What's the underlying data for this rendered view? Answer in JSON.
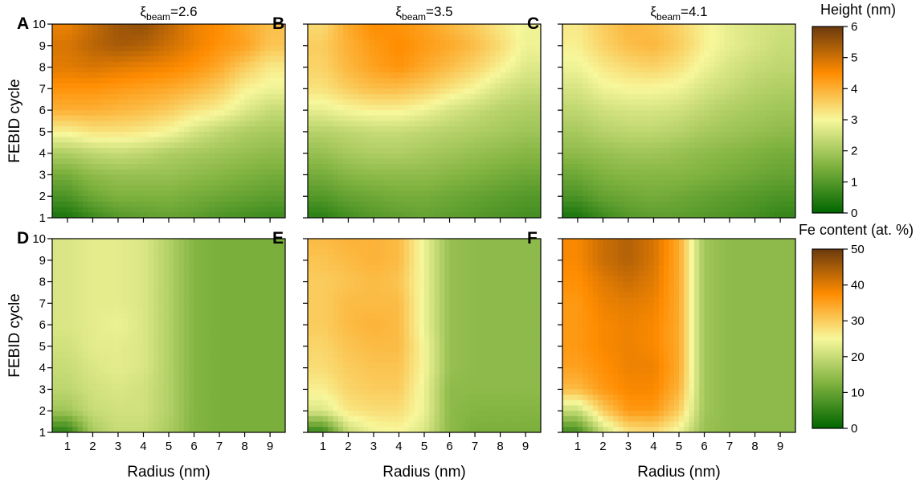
{
  "colors": {
    "colormap": [
      "#006600",
      "#7fb23f",
      "#f7f79b",
      "#ff8c00",
      "#6b3a0e"
    ]
  },
  "chart_data": [
    {
      "type": "heatmap",
      "panel": "A",
      "row": "top",
      "title_prefix": "ξ",
      "title_sub": "beam",
      "title_suffix": "=2.6",
      "xlabel": "",
      "ylabel": "FEBID cycle",
      "xlim": [
        0.4,
        9.6
      ],
      "ylim": [
        1,
        10
      ],
      "zlim": [
        0,
        6
      ],
      "x": [
        1,
        2,
        3,
        4,
        5,
        6,
        7,
        8,
        9
      ],
      "y": [
        1,
        2,
        3,
        4,
        5,
        6,
        7,
        8,
        9,
        10
      ],
      "z": [
        [
          0.3,
          0.7,
          1.0,
          1.1,
          1.2,
          1.1,
          0.9,
          0.8,
          0.7
        ],
        [
          0.9,
          1.3,
          1.5,
          1.5,
          1.5,
          1.4,
          1.3,
          1.2,
          1.1
        ],
        [
          1.4,
          1.7,
          1.8,
          1.8,
          1.8,
          1.7,
          1.6,
          1.5,
          1.4
        ],
        [
          2.1,
          2.3,
          2.4,
          2.3,
          2.1,
          2.0,
          1.9,
          1.8,
          1.7
        ],
        [
          3.1,
          3.3,
          3.3,
          3.2,
          3.0,
          2.6,
          2.3,
          2.1,
          2.0
        ],
        [
          4.0,
          4.0,
          3.9,
          3.8,
          3.6,
          3.3,
          3.1,
          2.7,
          2.4
        ],
        [
          4.4,
          4.4,
          4.3,
          4.2,
          4.1,
          3.9,
          3.6,
          3.1,
          2.9
        ],
        [
          4.8,
          4.9,
          4.8,
          4.7,
          4.6,
          4.4,
          4.1,
          3.6,
          3.2
        ],
        [
          4.9,
          5.2,
          5.4,
          5.3,
          5.0,
          4.7,
          4.4,
          4.2,
          3.7
        ],
        [
          4.7,
          5.1,
          5.5,
          5.6,
          5.2,
          4.7,
          4.5,
          4.1,
          3.8
        ]
      ]
    },
    {
      "type": "heatmap",
      "panel": "B",
      "row": "top",
      "title_prefix": "ξ",
      "title_sub": "beam",
      "title_suffix": "=3.5",
      "xlabel": "",
      "ylabel": "",
      "xlim": [
        0.4,
        9.6
      ],
      "ylim": [
        1,
        10
      ],
      "zlim": [
        0,
        6
      ],
      "x": [
        1,
        2,
        3,
        4,
        5,
        6,
        7,
        8,
        9
      ],
      "y": [
        1,
        2,
        3,
        4,
        5,
        6,
        7,
        8,
        9,
        10
      ],
      "z": [
        [
          0.5,
          0.8,
          1.0,
          1.1,
          1.2,
          1.1,
          1.0,
          0.9,
          0.8
        ],
        [
          1.0,
          1.2,
          1.3,
          1.4,
          1.4,
          1.3,
          1.2,
          1.1,
          1.0
        ],
        [
          1.4,
          1.6,
          1.7,
          1.7,
          1.7,
          1.6,
          1.5,
          1.4,
          1.3
        ],
        [
          1.8,
          2.0,
          2.1,
          2.1,
          2.0,
          1.9,
          1.8,
          1.7,
          1.6
        ],
        [
          2.2,
          2.3,
          2.4,
          2.4,
          2.3,
          2.2,
          2.1,
          2.0,
          1.9
        ],
        [
          2.8,
          3.0,
          3.1,
          3.1,
          2.9,
          2.6,
          2.4,
          2.2,
          2.1
        ],
        [
          3.3,
          3.6,
          3.8,
          3.8,
          3.6,
          3.3,
          3.0,
          2.6,
          2.4
        ],
        [
          3.5,
          3.9,
          4.2,
          4.4,
          4.1,
          3.8,
          3.5,
          3.1,
          2.7
        ],
        [
          3.6,
          4.0,
          4.3,
          4.5,
          4.3,
          4.1,
          3.8,
          3.4,
          2.9
        ],
        [
          3.4,
          4.1,
          4.5,
          4.4,
          4.2,
          3.9,
          3.6,
          3.2,
          2.9
        ]
      ]
    },
    {
      "type": "heatmap",
      "panel": "C",
      "row": "top",
      "title_prefix": "ξ",
      "title_sub": "beam",
      "title_suffix": "=4.1",
      "xlabel": "",
      "ylabel": "",
      "xlim": [
        0.4,
        9.6
      ],
      "ylim": [
        1,
        10
      ],
      "zlim": [
        0,
        6
      ],
      "x": [
        1,
        2,
        3,
        4,
        5,
        6,
        7,
        8,
        9
      ],
      "y": [
        1,
        2,
        3,
        4,
        5,
        6,
        7,
        8,
        9,
        10
      ],
      "z": [
        [
          0.3,
          0.7,
          1.0,
          1.1,
          1.1,
          1.0,
          0.9,
          0.8,
          0.6
        ],
        [
          0.9,
          1.2,
          1.3,
          1.4,
          1.3,
          1.2,
          1.1,
          1.0,
          0.9
        ],
        [
          1.3,
          1.5,
          1.6,
          1.6,
          1.6,
          1.5,
          1.4,
          1.3,
          1.2
        ],
        [
          1.7,
          1.8,
          1.9,
          1.9,
          1.8,
          1.7,
          1.6,
          1.5,
          1.4
        ],
        [
          2.0,
          2.2,
          2.3,
          2.3,
          2.2,
          2.0,
          1.9,
          1.8,
          1.7
        ],
        [
          2.3,
          2.5,
          2.6,
          2.6,
          2.5,
          2.3,
          2.1,
          2.0,
          1.9
        ],
        [
          2.6,
          2.9,
          3.0,
          3.0,
          2.9,
          2.6,
          2.4,
          2.2,
          2.1
        ],
        [
          2.9,
          3.2,
          3.4,
          3.5,
          3.3,
          2.9,
          2.6,
          2.4,
          2.3
        ],
        [
          3.1,
          3.5,
          3.8,
          3.9,
          3.6,
          3.1,
          2.8,
          2.6,
          2.4
        ],
        [
          3.2,
          3.6,
          3.9,
          3.8,
          3.5,
          3.1,
          2.8,
          2.6,
          2.5
        ]
      ]
    },
    {
      "type": "heatmap",
      "panel": "D",
      "row": "bottom",
      "title_prefix": "",
      "title_sub": "",
      "title_suffix": "",
      "xlabel": "Radius (nm)",
      "ylabel": "FEBID cycle",
      "xlim": [
        0.4,
        9.6
      ],
      "ylim": [
        1,
        10
      ],
      "zlim": [
        0,
        50
      ],
      "x": [
        1,
        2,
        3,
        4,
        5,
        6,
        7,
        8,
        9
      ],
      "y": [
        1,
        2,
        3,
        4,
        5,
        6,
        7,
        8,
        9,
        10
      ],
      "z": [
        [
          4,
          17,
          20,
          20,
          17,
          13,
          12,
          12,
          12
        ],
        [
          16,
          20,
          21,
          21,
          18,
          13,
          12,
          12,
          12
        ],
        [
          19,
          21,
          22,
          21,
          18,
          13,
          12,
          12,
          12
        ],
        [
          20,
          22,
          23,
          22,
          18,
          13,
          12,
          12,
          12
        ],
        [
          21,
          23,
          23,
          22,
          18,
          13,
          12,
          12,
          12
        ],
        [
          22,
          23,
          24,
          22,
          18,
          13,
          12,
          12,
          12
        ],
        [
          22,
          23,
          23,
          22,
          18,
          13,
          12,
          12,
          12
        ],
        [
          22,
          23,
          23,
          22,
          18,
          13,
          12,
          12,
          12
        ],
        [
          22,
          23,
          23,
          22,
          18,
          13,
          12,
          12,
          12
        ],
        [
          22,
          23,
          23,
          22,
          18,
          13,
          12,
          12,
          12
        ]
      ]
    },
    {
      "type": "heatmap",
      "panel": "E",
      "row": "bottom",
      "title_prefix": "",
      "title_sub": "",
      "title_suffix": "",
      "xlabel": "Radius (nm)",
      "ylabel": "",
      "xlim": [
        0.4,
        9.6
      ],
      "ylim": [
        1,
        10
      ],
      "zlim": [
        0,
        50
      ],
      "x": [
        1,
        2,
        3,
        4,
        5,
        6,
        7,
        8,
        9
      ],
      "y": [
        1,
        2,
        3,
        4,
        5,
        6,
        7,
        8,
        9,
        10
      ],
      "z": [
        [
          5,
          20,
          24,
          25,
          22,
          14,
          12,
          12,
          12
        ],
        [
          22,
          27,
          28,
          28,
          24,
          14,
          13,
          13,
          13
        ],
        [
          26,
          29,
          30,
          30,
          24,
          14,
          14,
          14,
          14
        ],
        [
          28,
          30,
          31,
          31,
          25,
          15,
          14,
          14,
          14
        ],
        [
          29,
          31,
          32,
          32,
          25,
          15,
          14,
          14,
          14
        ],
        [
          30,
          32,
          33,
          32,
          24,
          15,
          14,
          14,
          14
        ],
        [
          30,
          32,
          32,
          32,
          24,
          15,
          14,
          14,
          14
        ],
        [
          30,
          31,
          32,
          31,
          24,
          15,
          14,
          14,
          14
        ],
        [
          31,
          32,
          33,
          32,
          24,
          15,
          14,
          14,
          14
        ],
        [
          32,
          33,
          33,
          32,
          24,
          15,
          14,
          14,
          14
        ]
      ]
    },
    {
      "type": "heatmap",
      "panel": "F",
      "row": "bottom",
      "title_prefix": "",
      "title_sub": "",
      "title_suffix": "",
      "xlabel": "Radius (nm)",
      "ylabel": "",
      "xlim": [
        0.4,
        9.6
      ],
      "ylim": [
        1,
        10
      ],
      "zlim": [
        0,
        50
      ],
      "x": [
        1,
        2,
        3,
        4,
        5,
        6,
        7,
        8,
        9
      ],
      "y": [
        1,
        2,
        3,
        4,
        5,
        6,
        7,
        8,
        9,
        10
      ],
      "z": [
        [
          6,
          20,
          27,
          28,
          24,
          15,
          14,
          14,
          14
        ],
        [
          20,
          30,
          36,
          36,
          30,
          16,
          14,
          14,
          14
        ],
        [
          32,
          36,
          38,
          38,
          33,
          16,
          14,
          14,
          14
        ],
        [
          35,
          37,
          39,
          39,
          34,
          16,
          14,
          14,
          14
        ],
        [
          36,
          38,
          39,
          38,
          34,
          16,
          14,
          14,
          14
        ],
        [
          36,
          38,
          39,
          38,
          34,
          16,
          14,
          14,
          14
        ],
        [
          36,
          39,
          40,
          39,
          34,
          16,
          14,
          14,
          14
        ],
        [
          37,
          40,
          42,
          40,
          34,
          16,
          14,
          14,
          14
        ],
        [
          38,
          42,
          44,
          41,
          34,
          16,
          14,
          14,
          14
        ],
        [
          38,
          42,
          44,
          41,
          34,
          16,
          14,
          14,
          14
        ]
      ]
    }
  ],
  "colorbars": [
    {
      "title": "Height (nm)",
      "ticks": [
        0,
        1,
        2,
        3,
        4,
        5,
        6
      ],
      "range": [
        0,
        6
      ]
    },
    {
      "title": "Fe content (at. %)",
      "ticks": [
        0,
        10,
        20,
        30,
        40,
        50
      ],
      "range": [
        0,
        50
      ]
    }
  ]
}
